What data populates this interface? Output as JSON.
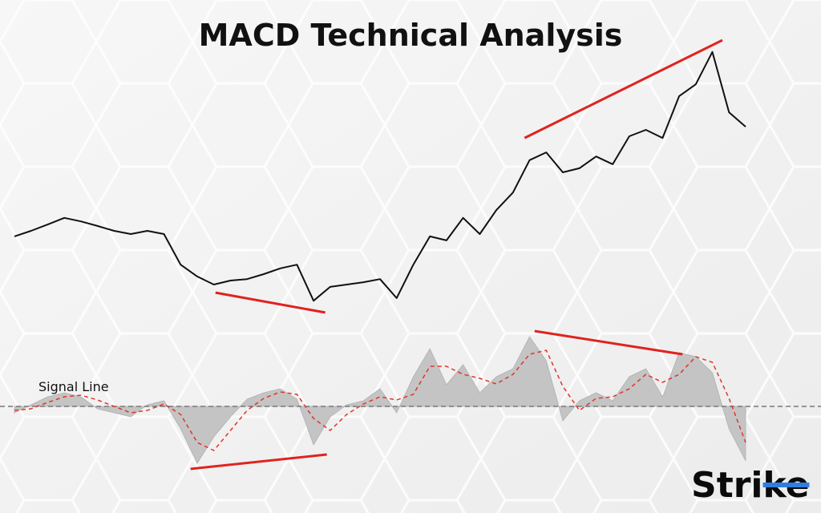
{
  "brand": "Strike",
  "chart_data": [
    {
      "type": "line",
      "title": "MACD Technical Analysis",
      "x": [
        0,
        1,
        2,
        3,
        4,
        5,
        6,
        7,
        8,
        9,
        10,
        11,
        12,
        13,
        14,
        15,
        16,
        17,
        18,
        19,
        20,
        21,
        22,
        23,
        24,
        25,
        26,
        27,
        28,
        29,
        30,
        31,
        32,
        33,
        34,
        35,
        36,
        37,
        38,
        39,
        40,
        41,
        42,
        43,
        44
      ],
      "xlim": [
        0,
        44
      ],
      "ylim": [
        0,
        100
      ],
      "series": [
        {
          "color": "#111111",
          "values": [
            29.2,
            31.1,
            33.3,
            35.6,
            34.4,
            32.8,
            31.1,
            30.0,
            31.1,
            30.0,
            19.4,
            15.3,
            12.5,
            13.9,
            14.4,
            16.1,
            18.1,
            19.4,
            6.9,
            11.7,
            12.5,
            13.3,
            14.4,
            7.8,
            19.4,
            29.2,
            27.8,
            35.6,
            30.0,
            38.3,
            44.4,
            55.6,
            58.3,
            51.4,
            52.8,
            56.9,
            54.2,
            63.9,
            66.1,
            63.3,
            77.8,
            81.9,
            93.1,
            72.2,
            67.2
          ]
        }
      ],
      "trendlines": [
        {
          "color": "#e0231f",
          "x": [
            12.1,
            18.7
          ],
          "values": [
            9.7,
            2.8
          ]
        },
        {
          "color": "#e0231f",
          "x": [
            30.7,
            42.6
          ],
          "values": [
            63.3,
            97.2
          ]
        }
      ]
    },
    {
      "type": "area",
      "x": [
        0,
        1,
        2,
        3,
        4,
        5,
        6,
        7,
        8,
        9,
        10,
        11,
        12,
        13,
        14,
        15,
        16,
        17,
        18,
        19,
        20,
        21,
        22,
        23,
        24,
        25,
        26,
        27,
        28,
        29,
        30,
        31,
        32,
        33,
        34,
        35,
        36,
        37,
        38,
        39,
        40,
        41,
        42,
        43,
        44
      ],
      "xlim": [
        0,
        44
      ],
      "ylim": [
        -80,
        100
      ],
      "series": [
        {
          "color": "#c4c4c4",
          "values": [
            -8,
            2,
            12,
            17,
            12,
            -3,
            -8,
            -13,
            2,
            7,
            -28,
            -71,
            -38,
            -13,
            9,
            17,
            22,
            9,
            -48,
            -13,
            2,
            7,
            22,
            -8,
            37,
            72,
            27,
            52,
            17,
            37,
            47,
            87,
            57,
            -18,
            7,
            17,
            7,
            37,
            47,
            12,
            67,
            62,
            42,
            -28,
            -68
          ]
        },
        {
          "name": "Signal Line",
          "color": "#e0352b",
          "dashed": true,
          "values": [
            -5,
            -3,
            5,
            12,
            14,
            8,
            0,
            -8,
            -5,
            3,
            -10,
            -45,
            -55,
            -30,
            -5,
            10,
            18,
            15,
            -15,
            -30,
            -10,
            3,
            12,
            8,
            15,
            50,
            50,
            40,
            35,
            28,
            40,
            65,
            70,
            25,
            -5,
            10,
            12,
            22,
            40,
            30,
            40,
            62,
            55,
            10,
            -45
          ]
        }
      ],
      "trendlines": [
        {
          "color": "#e0231f",
          "x": [
            10.6,
            18.8
          ],
          "values": [
            -78,
            -60
          ]
        },
        {
          "color": "#e0231f",
          "x": [
            31.3,
            40.2
          ],
          "values": [
            94,
            65
          ]
        }
      ]
    }
  ]
}
